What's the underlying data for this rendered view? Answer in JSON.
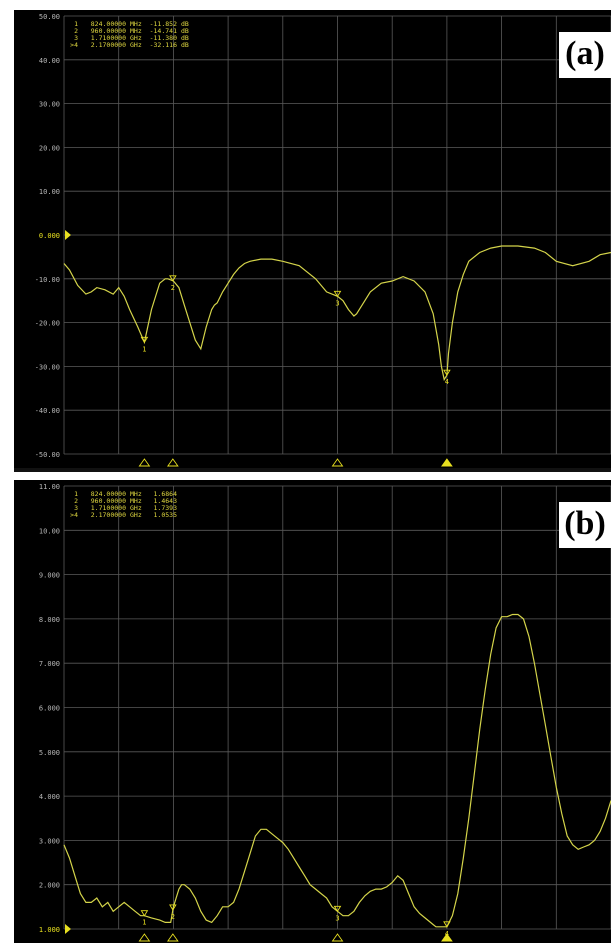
{
  "chart_data": [
    {
      "type": "line",
      "panel_label": "(a)",
      "ylim": [
        -50,
        50
      ],
      "yticks": [
        "50.00",
        "40.00",
        "30.00",
        "20.00",
        "10.00",
        "0.000",
        "-10.00",
        "-20.00",
        "-30.00",
        "-40.00",
        "-50.00"
      ],
      "reference_tick": "0.000",
      "markers_readout": [
        {
          "num": "1",
          "freq": "824.00000",
          "unit": "MHz",
          "value": "-11.852",
          "vunit": "dB"
        },
        {
          "num": "2",
          "freq": "960.00000",
          "unit": "MHz",
          "value": "-14.741",
          "vunit": "dB"
        },
        {
          "num": "3",
          "freq": "1.7100000",
          "unit": "GHz",
          "value": "-11.380",
          "vunit": "dB"
        },
        {
          "num": ">4",
          "freq": "2.1700000",
          "unit": "GHz",
          "value": "-32.116",
          "vunit": "dB"
        }
      ],
      "marker_labels": [
        "1",
        "2",
        "3",
        "4"
      ],
      "marker_x_frac": [
        0.147,
        0.199,
        0.5,
        0.7
      ],
      "trace_color": "#d4d44a",
      "series": [
        {
          "x": [
            0,
            0.01,
            0.025,
            0.04,
            0.05,
            0.06,
            0.075,
            0.09,
            0.1,
            0.11,
            0.12,
            0.135,
            0.147,
            0.16,
            0.175,
            0.185,
            0.19,
            0.2,
            0.21,
            0.22,
            0.23,
            0.24,
            0.25,
            0.26,
            0.27,
            0.275,
            0.28,
            0.29,
            0.3,
            0.31,
            0.32,
            0.33,
            0.34,
            0.36,
            0.38,
            0.4,
            0.43,
            0.46,
            0.48,
            0.5,
            0.51,
            0.52,
            0.53,
            0.535,
            0.545,
            0.56,
            0.58,
            0.6,
            0.62,
            0.64,
            0.66,
            0.675,
            0.685,
            0.69,
            0.695,
            0.7,
            0.703,
            0.71,
            0.72,
            0.73,
            0.74,
            0.76,
            0.78,
            0.8,
            0.83,
            0.86,
            0.88,
            0.9,
            0.93,
            0.96,
            0.98,
            1.0
          ],
          "y": [
            -6.5,
            -8,
            -11.5,
            -13.5,
            -13,
            -12,
            -12.5,
            -13.5,
            -12,
            -14,
            -17,
            -21,
            -24.5,
            -17,
            -11,
            -10,
            -10,
            -10.5,
            -12,
            -16,
            -20,
            -24,
            -26,
            -21,
            -17,
            -16,
            -15.5,
            -13,
            -11,
            -9,
            -7.5,
            -6.5,
            -6,
            -5.5,
            -5.5,
            -6,
            -7,
            -10,
            -13,
            -14,
            -15,
            -17,
            -18.5,
            -18,
            -16,
            -13,
            -11,
            -10.5,
            -9.5,
            -10.5,
            -13,
            -18,
            -25,
            -30,
            -33,
            -32,
            -27,
            -20,
            -13,
            -9,
            -6,
            -4,
            -3,
            -2.5,
            -2.5,
            -3,
            -4,
            -6,
            -7,
            -6,
            -4.5,
            -4
          ]
        }
      ]
    },
    {
      "type": "line",
      "panel_label": "(b)",
      "ylim": [
        1,
        11
      ],
      "yticks": [
        "11.00",
        "10.00",
        "9.000",
        "8.000",
        "7.000",
        "6.000",
        "5.000",
        "4.000",
        "3.000",
        "2.000",
        "1.000"
      ],
      "reference_tick": "1.000",
      "markers_readout": [
        {
          "num": "1",
          "freq": "824.00000",
          "unit": "MHz",
          "value": "1.6864",
          "vunit": ""
        },
        {
          "num": "2",
          "freq": "960.00000",
          "unit": "MHz",
          "value": "1.4643",
          "vunit": ""
        },
        {
          "num": "3",
          "freq": "1.7100000",
          "unit": "GHz",
          "value": "1.7393",
          "vunit": ""
        },
        {
          "num": ">4",
          "freq": "2.1700000",
          "unit": "GHz",
          "value": "1.0535",
          "vunit": ""
        }
      ],
      "marker_labels": [
        "1",
        "2",
        "3",
        "4"
      ],
      "marker_x_frac": [
        0.147,
        0.199,
        0.5,
        0.7
      ],
      "trace_color": "#d4d44a",
      "series": [
        {
          "x": [
            0,
            0.01,
            0.02,
            0.03,
            0.04,
            0.05,
            0.06,
            0.07,
            0.08,
            0.09,
            0.1,
            0.11,
            0.12,
            0.13,
            0.14,
            0.147,
            0.16,
            0.175,
            0.185,
            0.195,
            0.2,
            0.21,
            0.215,
            0.22,
            0.23,
            0.24,
            0.25,
            0.26,
            0.27,
            0.28,
            0.29,
            0.3,
            0.31,
            0.32,
            0.33,
            0.34,
            0.35,
            0.36,
            0.37,
            0.38,
            0.39,
            0.4,
            0.41,
            0.42,
            0.43,
            0.44,
            0.45,
            0.46,
            0.47,
            0.48,
            0.49,
            0.5,
            0.51,
            0.52,
            0.53,
            0.54,
            0.55,
            0.56,
            0.57,
            0.58,
            0.59,
            0.6,
            0.61,
            0.62,
            0.63,
            0.64,
            0.65,
            0.66,
            0.67,
            0.675,
            0.68,
            0.69,
            0.7,
            0.71,
            0.72,
            0.73,
            0.74,
            0.75,
            0.76,
            0.77,
            0.78,
            0.79,
            0.8,
            0.81,
            0.82,
            0.83,
            0.84,
            0.85,
            0.86,
            0.87,
            0.88,
            0.89,
            0.9,
            0.91,
            0.92,
            0.93,
            0.94,
            0.95,
            0.96,
            0.97,
            0.98,
            0.99,
            1.0
          ],
          "y": [
            2.9,
            2.6,
            2.2,
            1.8,
            1.6,
            1.6,
            1.7,
            1.5,
            1.6,
            1.4,
            1.5,
            1.6,
            1.5,
            1.4,
            1.3,
            1.3,
            1.25,
            1.2,
            1.15,
            1.15,
            1.5,
            1.9,
            2.0,
            2.0,
            1.9,
            1.7,
            1.4,
            1.2,
            1.15,
            1.3,
            1.5,
            1.5,
            1.6,
            1.9,
            2.3,
            2.7,
            3.1,
            3.25,
            3.25,
            3.15,
            3.05,
            2.95,
            2.8,
            2.6,
            2.4,
            2.2,
            2.0,
            1.9,
            1.8,
            1.7,
            1.5,
            1.4,
            1.3,
            1.3,
            1.4,
            1.6,
            1.75,
            1.85,
            1.9,
            1.9,
            1.95,
            2.05,
            2.2,
            2.1,
            1.8,
            1.5,
            1.35,
            1.25,
            1.15,
            1.1,
            1.05,
            1.05,
            1.05,
            1.3,
            1.8,
            2.6,
            3.5,
            4.5,
            5.5,
            6.4,
            7.2,
            7.8,
            8.05,
            8.05,
            8.1,
            8.1,
            8.0,
            7.6,
            7.0,
            6.3,
            5.6,
            4.9,
            4.2,
            3.6,
            3.1,
            2.9,
            2.8,
            2.85,
            2.9,
            3.0,
            3.2,
            3.5,
            3.9
          ]
        }
      ]
    }
  ]
}
